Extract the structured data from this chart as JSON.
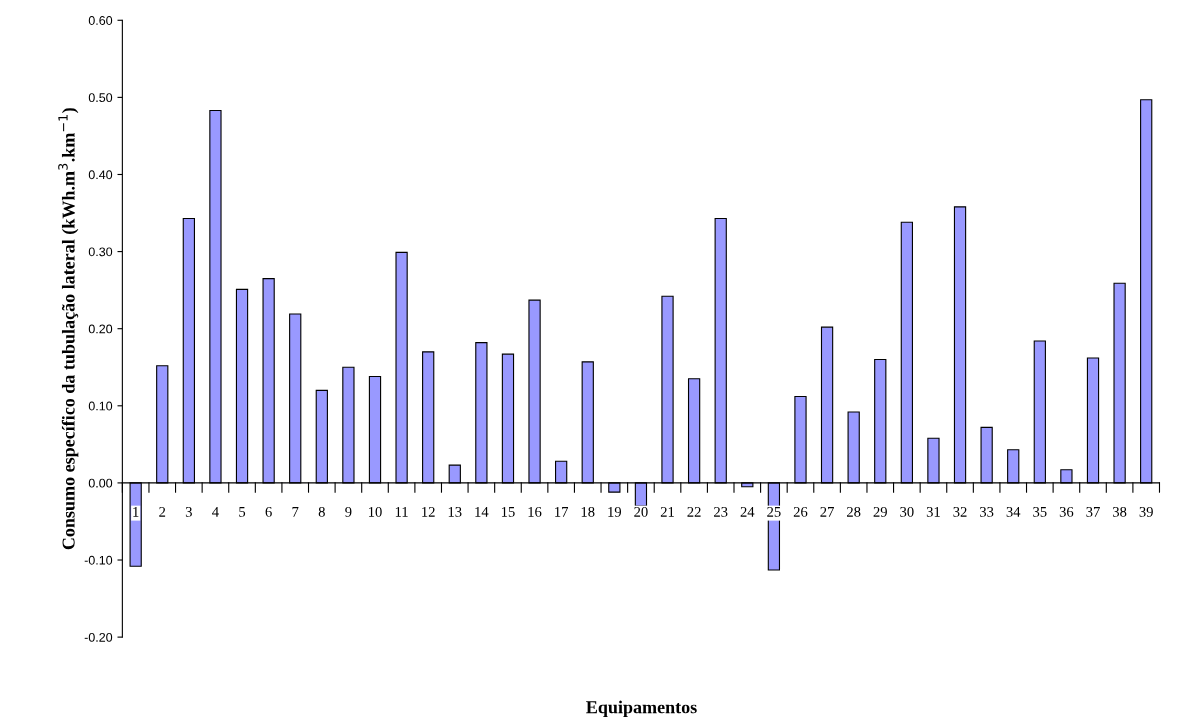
{
  "chart_data": {
    "type": "bar",
    "xlabel": "Equipamentos",
    "ylabel": "Consumo específico da tubulação lateral (kWh.m$^{3}$.km$^{−1}$)",
    "categories": [
      "1",
      "2",
      "3",
      "4",
      "5",
      "6",
      "7",
      "8",
      "9",
      "10",
      "11",
      "12",
      "13",
      "14",
      "15",
      "16",
      "17",
      "18",
      "19",
      "20",
      "21",
      "22",
      "23",
      "24",
      "25",
      "26",
      "27",
      "28",
      "29",
      "30",
      "31",
      "32",
      "33",
      "34",
      "35",
      "36",
      "37",
      "38",
      "39"
    ],
    "values": [
      -0.108,
      0.152,
      0.343,
      0.483,
      0.251,
      0.265,
      0.219,
      0.12,
      0.15,
      0.138,
      0.299,
      0.17,
      0.023,
      0.182,
      0.167,
      0.237,
      0.028,
      0.157,
      -0.012,
      -0.03,
      0.242,
      0.135,
      0.343,
      -0.005,
      -0.113,
      0.112,
      0.202,
      0.092,
      0.16,
      0.338,
      0.058,
      0.358,
      0.072,
      0.043,
      0.184,
      0.017,
      0.162,
      0.259,
      0.497
    ],
    "color": "#9999ff",
    "ylim": [
      -0.2,
      0.6
    ],
    "yticks": [
      {
        "value": -0.2,
        "label": "-0.20"
      },
      {
        "value": -0.1,
        "label": "-0.10"
      },
      {
        "value": 0,
        "label": "0.00"
      },
      {
        "value": 0.1,
        "label": "0.10"
      },
      {
        "value": 0.2,
        "label": "0.20"
      },
      {
        "value": 0.3,
        "label": "0.30"
      },
      {
        "value": 0.4,
        "label": "0.40"
      },
      {
        "value": 0.5,
        "label": "0.50"
      },
      {
        "value": 0.6,
        "label": "0.60"
      }
    ],
    "grid": false,
    "legend": false
  }
}
